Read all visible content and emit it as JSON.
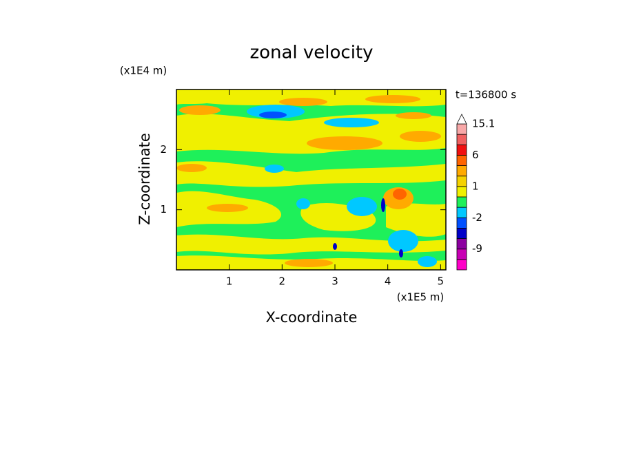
{
  "chart_data": {
    "type": "contour",
    "title": "zonal velocity",
    "x_label": "X-coordinate",
    "y_label": "Z-coordinate",
    "x_unit": "(x1E5 m)",
    "y_unit": "(x1E4 m)",
    "time_label": "t=136800 s",
    "xlim": [
      0,
      5.1
    ],
    "xticks": [
      1,
      2,
      3,
      4,
      5
    ],
    "ylim": [
      0,
      3
    ],
    "yticks": [
      1,
      2
    ],
    "colorbar": {
      "levels": [
        -15,
        -12,
        -9,
        -6,
        -3,
        -2,
        -1,
        0,
        1,
        2,
        3,
        6,
        9,
        12,
        15.1
      ],
      "colors": [
        "#ff00c8",
        "#c800b4",
        "#8c00a0",
        "#0000c8",
        "#0050ff",
        "#00c8ff",
        "#1ef05a",
        "#f0f000",
        "#f5d200",
        "#ffaa00",
        "#ff6400",
        "#f01010",
        "#f06060",
        "#f8a8a8"
      ],
      "over_color": "#ffffff",
      "ticks": [
        15.1,
        6,
        1,
        -2,
        -9
      ]
    }
  }
}
